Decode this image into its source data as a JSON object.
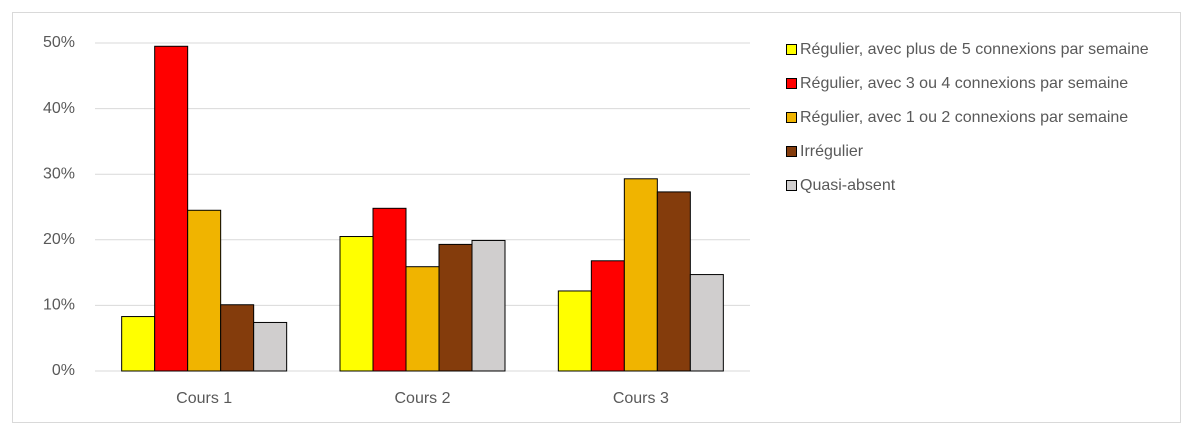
{
  "chart_data": {
    "type": "bar",
    "categories": [
      "Cours 1",
      "Cours 2",
      "Cours 3"
    ],
    "series": [
      {
        "name": "Régulier, avec plus de 5 connexions par semaine",
        "color": "#ffff00",
        "values": [
          8.3,
          20.5,
          12.2
        ]
      },
      {
        "name": "Régulier, avec 3 ou 4 connexions par semaine",
        "color": "#ff0000",
        "values": [
          49.5,
          24.8,
          16.8
        ]
      },
      {
        "name": "Régulier, avec 1 ou 2 connexions par semaine",
        "color": "#f0b400",
        "values": [
          24.5,
          15.9,
          29.3
        ]
      },
      {
        "name": "Irrégulier",
        "color": "#843c0c",
        "values": [
          10.1,
          19.3,
          27.3
        ]
      },
      {
        "name": "Quasi-absent",
        "color": "#d0cece",
        "values": [
          7.4,
          19.9,
          14.7
        ]
      }
    ],
    "ylim": [
      0,
      50
    ],
    "yticks": [
      {
        "value": 0,
        "label": "0%"
      },
      {
        "value": 10,
        "label": "10%"
      },
      {
        "value": 20,
        "label": "20%"
      },
      {
        "value": 30,
        "label": "30%"
      },
      {
        "value": 40,
        "label": "40%"
      },
      {
        "value": 50,
        "label": "50%"
      }
    ],
    "grid": true,
    "legend": "right"
  }
}
